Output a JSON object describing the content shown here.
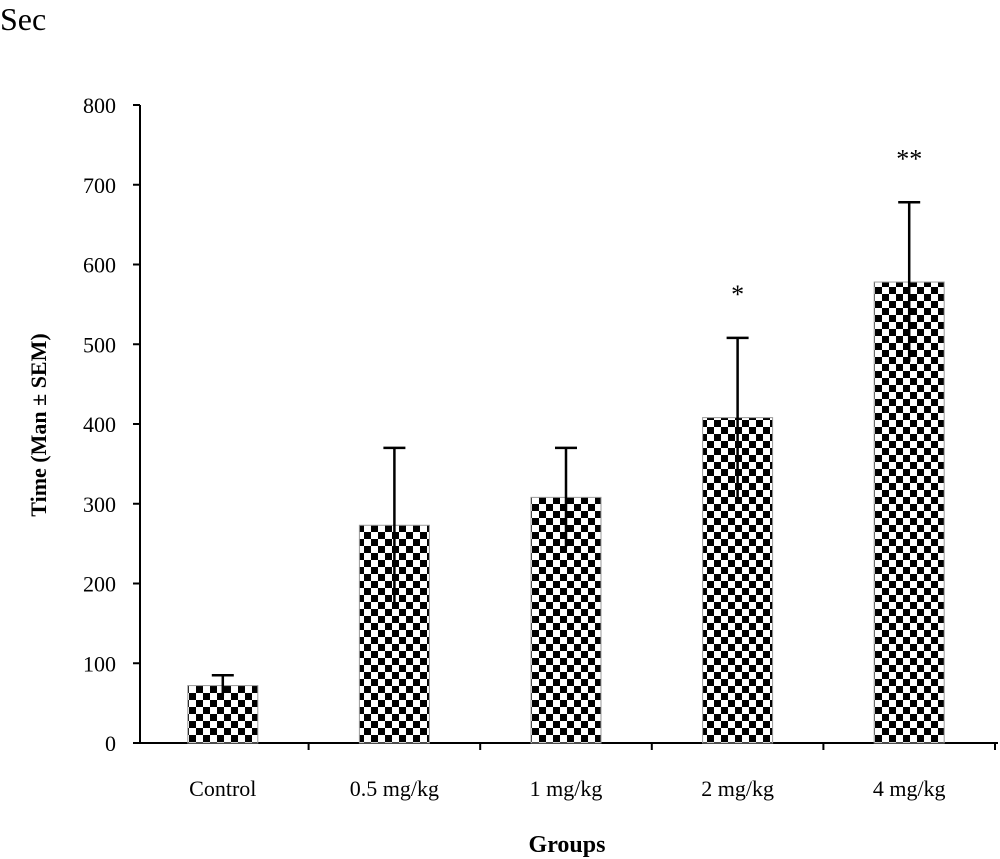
{
  "chart_data": {
    "type": "bar",
    "title": "",
    "unit_label": "Sec",
    "xlabel": "Groups",
    "ylabel": "Time (Man ± SEM)",
    "ylim": [
      0,
      800
    ],
    "yticks": [
      0,
      100,
      200,
      300,
      400,
      500,
      600,
      700,
      800
    ],
    "grid": false,
    "categories": [
      "Control",
      "0.5 mg/kg",
      "1 mg/kg",
      "2 mg/kg",
      "4 mg/kg"
    ],
    "values": [
      72,
      273,
      308,
      408,
      578
    ],
    "errors": [
      13,
      97,
      62,
      100,
      100
    ],
    "annotations": [
      "",
      "",
      "",
      "*",
      "**"
    ],
    "bar_pattern": "checkerboard",
    "colors": {
      "bar_dark": "#000000",
      "bar_light": "#ffffff",
      "axis": "#000000"
    }
  }
}
